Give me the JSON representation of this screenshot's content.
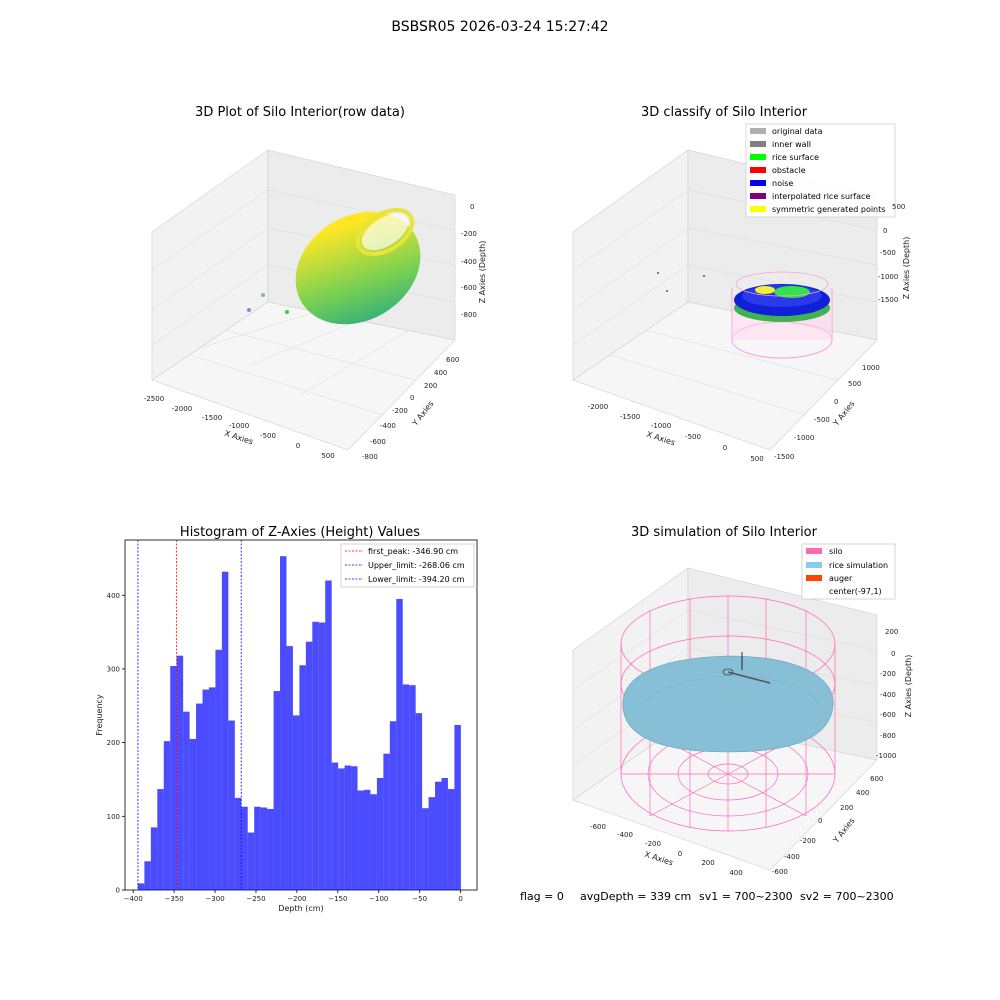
{
  "figure": {
    "suptitle": "BSBSR05 2026-03-24 15:27:42",
    "footer": {
      "flag": "flag = 0",
      "avg_depth": "avgDepth = 339 cm",
      "sv1": "sv1 = 700~2300",
      "sv2": "sv2 = 700~2300"
    }
  },
  "plot_raw": {
    "title": "3D Plot of Silo Interior(row data)",
    "xlabel": "X Axies",
    "ylabel": "Y Axies",
    "zlabel": "Z Axies (Depth)",
    "xticks": [
      "-2500",
      "-2000",
      "-1500",
      "-1000",
      "-500",
      "0",
      "500"
    ],
    "yticks": [
      "-800",
      "-600",
      "-400",
      "-200",
      "0",
      "200",
      "400",
      "600"
    ],
    "zticks": [
      "0",
      "-200",
      "-400",
      "-600",
      "-800"
    ]
  },
  "plot_classify": {
    "title": "3D classify of Silo Interior",
    "xlabel": "X Axies",
    "ylabel": "Y Axies",
    "zlabel": "Z Axies (Depth)",
    "xticks": [
      "-2000",
      "-1500",
      "-1000",
      "-500",
      "0",
      "500"
    ],
    "yticks": [
      "-1500",
      "-1000",
      "-500",
      "0",
      "500",
      "1000"
    ],
    "zticks": [
      "500",
      "0",
      "-500",
      "-1000",
      "-1500"
    ],
    "ztick_top": "0",
    "legend": [
      {
        "label": "original data",
        "color": "#b0b0b0"
      },
      {
        "label": "inner wall",
        "color": "#808080"
      },
      {
        "label": "rice surface",
        "color": "#00ff00"
      },
      {
        "label": "obstacle",
        "color": "#ff0000"
      },
      {
        "label": "noise",
        "color": "#0000ff"
      },
      {
        "label": "interpolated rice surface",
        "color": "#800080"
      },
      {
        "label": "symmetric generated points",
        "color": "#ffff00"
      }
    ]
  },
  "plot_sim": {
    "title": "3D simulation of Silo Interior",
    "xlabel": "X Axies",
    "ylabel": "Y Axies",
    "zlabel": "Z Axies (Depth)",
    "xticks": [
      "-600",
      "-400",
      "-200",
      "0",
      "200",
      "400"
    ],
    "yticks": [
      "-600",
      "-400",
      "-200",
      "0",
      "200",
      "400",
      "600"
    ],
    "zticks": [
      "200",
      "0",
      "-200",
      "-400",
      "-600",
      "-800",
      "-1000"
    ],
    "legend": [
      {
        "label": "silo",
        "color": "#ff69b4"
      },
      {
        "label": "rice simulation",
        "color": "#87ceeb"
      },
      {
        "label": "auger",
        "color": "#ff4500"
      },
      {
        "label": "center(-97,1)",
        "color": "#ffffff"
      }
    ]
  },
  "chart_data": {
    "type": "bar",
    "title": "Histogram of Z-Axies (Height) Values",
    "xlabel": "Depth (cm)",
    "ylabel": "Frequency",
    "xlim": [
      -410,
      20
    ],
    "ylim": [
      0,
      475
    ],
    "xticks": [
      -400,
      -350,
      -300,
      -250,
      -200,
      -150,
      -100,
      -50,
      0
    ],
    "yticks": [
      0,
      100,
      200,
      300,
      400
    ],
    "bar_color": "#0000ff",
    "bins_start": -394.2,
    "bin_width": 7.89,
    "values": [
      9,
      39,
      85,
      137,
      202,
      304,
      318,
      242,
      205,
      253,
      272,
      275,
      326,
      432,
      230,
      125,
      113,
      78,
      113,
      112,
      110,
      270,
      453,
      331,
      237,
      305,
      337,
      364,
      363,
      420,
      173,
      165,
      169,
      168,
      135,
      136,
      130,
      152,
      185,
      229,
      395,
      279,
      278,
      240,
      111,
      126,
      147,
      152,
      137,
      224
    ],
    "vlines": [
      {
        "label": "first_peak: -346.90 cm",
        "value": -346.9,
        "color": "#ff0000"
      },
      {
        "label": "Upper_limit: -268.06 cm",
        "value": -268.06,
        "color": "#0000ff"
      },
      {
        "label": "Lower_limit: -394.20 cm",
        "value": -394.2,
        "color": "#0000ff"
      }
    ],
    "legend_position": "upper right"
  }
}
